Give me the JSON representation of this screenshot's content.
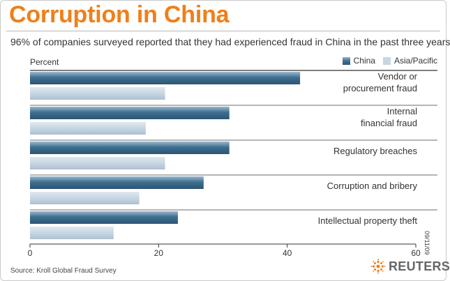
{
  "header": {
    "title": "Corruption in China",
    "subtitle": "96% of companies surveyed reported that they had experienced fraud in China in the past three years"
  },
  "footer": {
    "source": "Source: Kroll Global Fraud Survey",
    "date": "09/11/09",
    "brand": "REUTERS"
  },
  "colors": {
    "title": "#ef7f1a",
    "china": "#3f6f8f",
    "asia_pacific": "#c7d6e3",
    "rule": "#555555"
  },
  "chart_data": {
    "type": "bar",
    "orientation": "horizontal",
    "ylabel": "Percent",
    "categories": [
      [
        "Vendor or",
        "procurement fraud"
      ],
      [
        "Internal",
        "financial fraud"
      ],
      [
        "Regulatory breaches"
      ],
      [
        "Corruption and bribery"
      ],
      [
        "Intellectual property theft"
      ]
    ],
    "series": [
      {
        "name": "China",
        "values": [
          42,
          31,
          31,
          27,
          23
        ]
      },
      {
        "name": "Asia/Pacific",
        "values": [
          21,
          18,
          21,
          17,
          13
        ]
      }
    ],
    "xlim": [
      0,
      60
    ],
    "xticks": [
      0,
      20,
      40,
      60
    ],
    "grid": false,
    "legend_position": "top-right"
  }
}
